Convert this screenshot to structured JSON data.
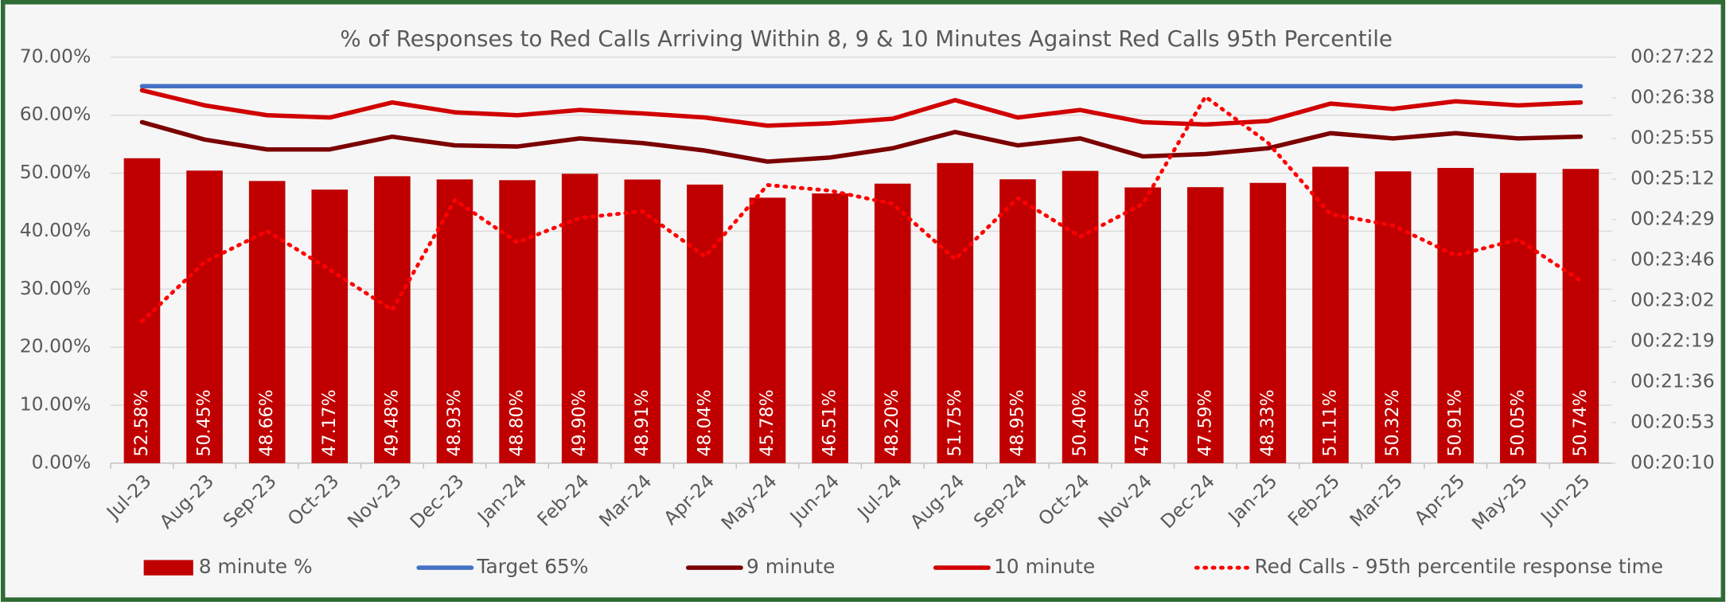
{
  "chart_data": {
    "type": "bar",
    "title": "% of Responses to Red Calls Arriving Within 8, 9 & 10 Minutes Against Red Calls 95th Percentile",
    "categories": [
      "Jul-23",
      "Aug-23",
      "Sep-23",
      "Oct-23",
      "Nov-23",
      "Dec-23",
      "Jan-24",
      "Feb-24",
      "Mar-24",
      "Apr-24",
      "May-24",
      "Jun-24",
      "Jul-24",
      "Aug-24",
      "Sep-24",
      "Oct-24",
      "Nov-24",
      "Dec-24",
      "Jan-25",
      "Feb-25",
      "Mar-25",
      "Apr-25",
      "May-25",
      "Jun-25"
    ],
    "ylim": [
      0,
      70
    ],
    "yticks": [
      {
        "value": 0,
        "label": "0.00%"
      },
      {
        "value": 10,
        "label": "10.00%"
      },
      {
        "value": 20,
        "label": "20.00%"
      },
      {
        "value": 30,
        "label": "30.00%"
      },
      {
        "value": 40,
        "label": "40.00%"
      },
      {
        "value": 50,
        "label": "50.00%"
      },
      {
        "value": 60,
        "label": "60.00%"
      },
      {
        "value": 70,
        "label": "70.00%"
      }
    ],
    "y2lim": [
      1210,
      1642
    ],
    "y2ticks": [
      {
        "value": 1210,
        "label": "00:20:10"
      },
      {
        "value": 1253.2,
        "label": "00:20:53"
      },
      {
        "value": 1296.4,
        "label": "00:21:36"
      },
      {
        "value": 1339.6,
        "label": "00:22:19"
      },
      {
        "value": 1382.8,
        "label": "00:23:02"
      },
      {
        "value": 1426,
        "label": "00:23:46"
      },
      {
        "value": 1469.2,
        "label": "00:24:29"
      },
      {
        "value": 1512.4,
        "label": "00:25:12"
      },
      {
        "value": 1555.6,
        "label": "00:25:55"
      },
      {
        "value": 1598.8,
        "label": "00:26:38"
      },
      {
        "value": 1642,
        "label": "00:27:22"
      }
    ],
    "grid": true,
    "legend": "bottom",
    "series": [
      {
        "name": "8 minute %",
        "type": "bar",
        "color": "#c00000",
        "values": [
          52.58,
          50.45,
          48.66,
          47.17,
          49.48,
          48.93,
          48.8,
          49.9,
          48.91,
          48.04,
          45.78,
          46.51,
          48.2,
          51.75,
          48.95,
          50.4,
          47.55,
          47.59,
          48.33,
          51.11,
          50.32,
          50.91,
          50.05,
          50.74
        ],
        "value_labels": [
          "52.58%",
          "50.45%",
          "48.66%",
          "47.17%",
          "49.48%",
          "48.93%",
          "48.80%",
          "49.90%",
          "48.91%",
          "48.04%",
          "45.78%",
          "46.51%",
          "48.20%",
          "51.75%",
          "48.95%",
          "50.40%",
          "47.55%",
          "47.59%",
          "48.33%",
          "51.11%",
          "50.32%",
          "50.91%",
          "50.05%",
          "50.74%"
        ]
      },
      {
        "name": "Target 65%",
        "type": "line",
        "color": "#4472c4",
        "values": [
          65,
          65,
          65,
          65,
          65,
          65,
          65,
          65,
          65,
          65,
          65,
          65,
          65,
          65,
          65,
          65,
          65,
          65,
          65,
          65,
          65,
          65,
          65,
          65
        ]
      },
      {
        "name": "9 minute",
        "type": "line",
        "color": "#7b0000",
        "values": [
          58.8,
          55.8,
          54.1,
          54.1,
          56.3,
          54.8,
          54.6,
          56.0,
          55.2,
          53.9,
          52.0,
          52.7,
          54.3,
          57.1,
          54.8,
          56.0,
          52.9,
          53.3,
          54.3,
          56.9,
          56.0,
          56.9,
          56.0,
          56.3
        ]
      },
      {
        "name": "10 minute",
        "type": "line",
        "color": "#d00000",
        "values": [
          64.3,
          61.7,
          60.0,
          59.6,
          62.2,
          60.5,
          60.0,
          60.9,
          60.3,
          59.6,
          58.2,
          58.6,
          59.4,
          62.6,
          59.6,
          60.9,
          58.8,
          58.4,
          59.0,
          62.0,
          61.1,
          62.4,
          61.7,
          62.2
        ]
      },
      {
        "name": "Red Calls - 95th percentile response time",
        "type": "line",
        "dotted": true,
        "axis": "y2",
        "color": "#ff0000",
        "values": [
          1361,
          1424,
          1457,
          1416,
          1373,
          1490,
          1445,
          1471,
          1478,
          1430,
          1506,
          1500,
          1486,
          1427,
          1492,
          1451,
          1486,
          1600,
          1551,
          1475,
          1463,
          1431,
          1448,
          1404
        ]
      }
    ]
  }
}
